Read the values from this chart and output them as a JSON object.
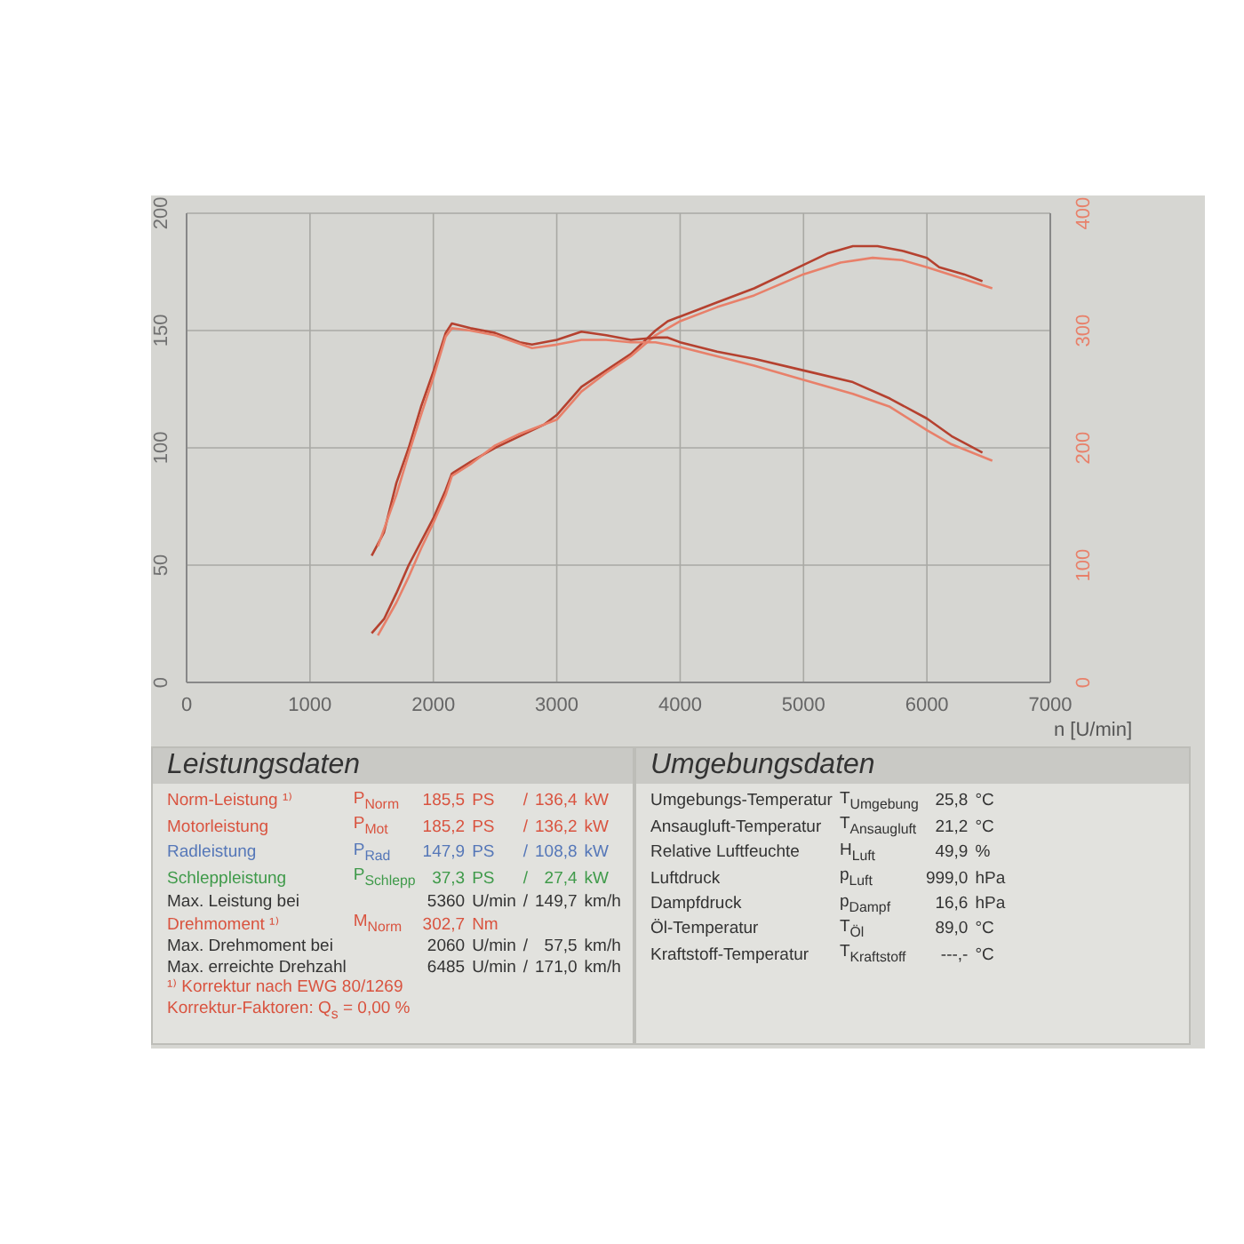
{
  "chart_data": [
    {
      "type": "line",
      "xlabel": "n [U/min]",
      "xlim": [
        0,
        7000
      ],
      "xticks": [
        0,
        1000,
        2000,
        3000,
        4000,
        5000,
        6000,
        7000
      ],
      "ylim": [
        0,
        200
      ],
      "yticks": [
        0,
        50,
        100,
        150,
        200
      ],
      "y2lim": [
        0,
        400
      ],
      "y2ticks": [
        0,
        100,
        200,
        300,
        400
      ],
      "grid": true,
      "series": [
        {
          "color": "#b5412f",
          "x": [
            1500,
            1600,
            1700,
            1800,
            1900,
            2000,
            2100,
            2150,
            2300,
            2500,
            2700,
            2900,
            3000,
            3200,
            3400,
            3600,
            3800,
            3900,
            4000,
            4300,
            4600,
            5000,
            5200,
            5400,
            5600,
            5800,
            6000,
            6100,
            6300,
            6450
          ],
          "values": [
            21,
            27,
            38,
            50,
            60,
            70,
            82,
            89,
            94,
            100,
            105,
            110,
            114,
            126,
            133,
            140,
            150,
            154,
            156,
            162,
            168,
            178,
            183,
            186,
            186,
            184,
            181,
            177,
            174,
            171
          ]
        },
        {
          "color": "#e8806a",
          "x": [
            1550,
            1700,
            1800,
            1900,
            2000,
            2100,
            2150,
            2300,
            2500,
            2700,
            3000,
            3200,
            3400,
            3600,
            3800,
            4000,
            4300,
            4600,
            5000,
            5300,
            5560,
            5800,
            6000,
            6300,
            6530
          ],
          "values": [
            20,
            34,
            45,
            57,
            68,
            80,
            88,
            93,
            101,
            106,
            112,
            124,
            132,
            139,
            148,
            154,
            160,
            165,
            174,
            179,
            181,
            180,
            177,
            172,
            168
          ]
        },
        {
          "color": "#b5412f",
          "axis": "y2",
          "x": [
            1500,
            1600,
            1700,
            1800,
            1900,
            2000,
            2100,
            2150,
            2300,
            2500,
            2700,
            2800,
            3000,
            3200,
            3400,
            3600,
            3800,
            3900,
            4000,
            4300,
            4600,
            5000,
            5400,
            5700,
            6000,
            6200,
            6450
          ],
          "values": [
            108,
            128,
            170,
            200,
            235,
            265,
            298,
            306,
            302,
            298,
            290,
            288,
            292,
            299,
            296,
            292,
            294,
            294,
            290,
            282,
            276,
            266,
            256,
            242,
            225,
            210,
            196
          ]
        },
        {
          "color": "#e8806a",
          "axis": "y2",
          "x": [
            1550,
            1700,
            1800,
            1900,
            2000,
            2100,
            2150,
            2300,
            2500,
            2800,
            3000,
            3200,
            3400,
            3600,
            3800,
            4000,
            4300,
            4600,
            5000,
            5400,
            5700,
            6000,
            6200,
            6530
          ],
          "values": [
            116,
            160,
            195,
            228,
            260,
            295,
            302,
            300,
            296,
            285,
            288,
            292,
            292,
            290,
            290,
            286,
            278,
            270,
            258,
            246,
            235,
            215,
            203,
            189
          ]
        }
      ]
    },
    {
      "type": "other",
      "title": "Leistungsdaten",
      "annotations": [
        "Norm-Leistung ¹⁾\tP$_{Norm}$\t185,5\tPS\t/\t136,4\tkW",
        "Motorleistung\tP$_{Mot}$\t185,2\tPS\t/\t136,2\tkW",
        "Radleistung\tP$_{Rad}$\t147,9\tPS\t/\t108,8\tkW",
        "Schleppleistung\tP$_{Schlepp}$\t37,3\tPS\t/\t27,4\tkW",
        "Max. Leistung bei\t\t5360\tU/min\t/\t149,7\tkm/h",
        "Drehmoment ¹⁾\tM$_{Norm}$\t302,7\tNm",
        "Max. Drehmoment bei\t\t2060\tU/min\t/\t57,5\tkm/h",
        "Max. erreichte Drehzahl\t\t6485\tU/min\t/\t171,0\tkm/h",
        "¹⁾ Korrektur nach EWG 80/1269",
        "Korrektur-Faktoren: Q$_{s}$ = 0,00 %"
      ],
      "colors": [
        "#d9533f",
        "#d9533f",
        "#5577b8",
        "#3f9a4a",
        "#333333",
        "#d9533f",
        "#333333",
        "#333333",
        "#d9533f",
        "#d9533f"
      ]
    },
    {
      "type": "other",
      "title": "Umgebungsdaten",
      "annotations": [
        "Umgebungs-Temperatur\tT$_{Umgebung}$\t25,8\t°C",
        "Ansaugluft-Temperatur\tT$_{Ansaugluft}$\t21,2\t°C",
        "Relative Luftfeuchte\tH$_{Luft}$\t49,9\t%",
        "Luftdruck\tp$_{Luft}$\t999,0\thPa",
        "Dampfdruck\tp$_{Dampf}$\t16,6\thPa",
        "Öl-Temperatur\tT$_{Öl}$\t89,0\t°C",
        "Kraftstoff-Temperatur\tT$_{Kraftstoff}$\t---,-\t°C"
      ],
      "colors": [
        "#333333",
        "#333333",
        "#333333",
        "#333333",
        "#333333",
        "#333333",
        "#333333"
      ]
    }
  ]
}
